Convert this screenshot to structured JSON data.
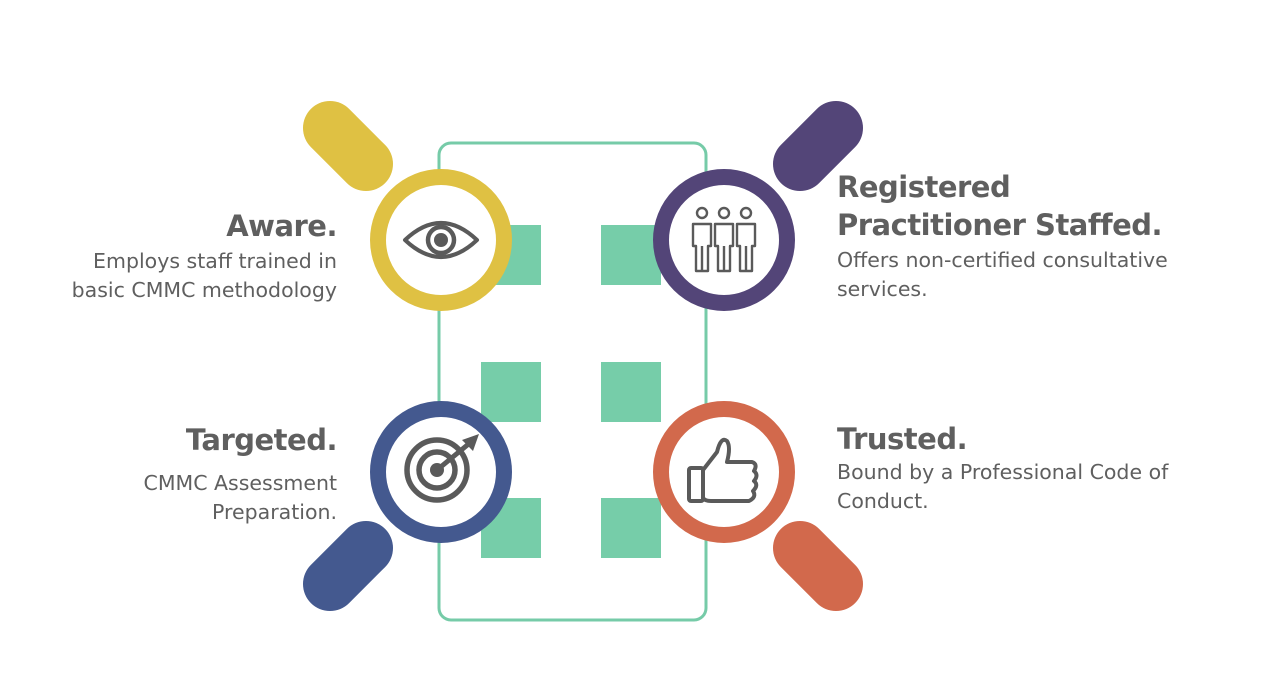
{
  "colors": {
    "frame": "#76cba8",
    "square": "#76cda9",
    "aware": "#dfc143",
    "registered": "#534578",
    "targeted": "#44598f",
    "trusted": "#d2694c",
    "icon": "#5a5a5a",
    "text": "#5f5f5f"
  },
  "items": {
    "aware": {
      "title": "Aware.",
      "description": "Employs staff trained in basic CMMC methodology",
      "icon": "eye-icon"
    },
    "registered": {
      "title": "Registered Practitioner Staffed.",
      "description": "Offers non-certified consultative services.",
      "icon": "people-icon"
    },
    "targeted": {
      "title": "Targeted.",
      "description": "CMMC Assessment Preparation.",
      "icon": "target-icon"
    },
    "trusted": {
      "title": "Trusted.",
      "description": "Bound by a Professional Code of Conduct.",
      "icon": "thumbs-up-icon"
    }
  }
}
